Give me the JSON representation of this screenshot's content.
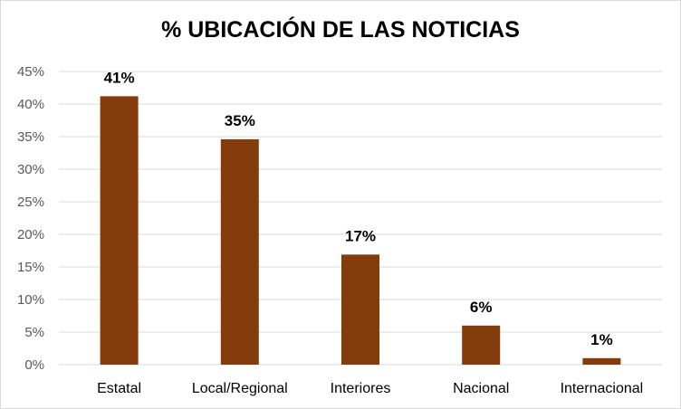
{
  "chart_data": {
    "type": "bar",
    "title": "% UBICACIÓN DE LAS NOTICIAS",
    "xlabel": "",
    "ylabel": "",
    "categories": [
      "Estatal",
      "Local/Regional",
      "Interiores",
      "Nacional",
      "Internacional"
    ],
    "values": [
      41.2,
      34.6,
      16.9,
      6.0,
      1.0
    ],
    "data_labels": [
      "41%",
      "35%",
      "17%",
      "6%",
      "1%"
    ],
    "ylim": [
      0,
      45
    ],
    "yticks": [
      0,
      5,
      10,
      15,
      20,
      25,
      30,
      35,
      40,
      45
    ],
    "ytick_labels": [
      "0%",
      "5%",
      "10%",
      "15%",
      "20%",
      "25%",
      "30%",
      "35%",
      "40%",
      "45%"
    ],
    "grid": true,
    "legend": "none",
    "colors": {
      "bar": "#843c0c",
      "grid": "#d9d9d9",
      "tick_text": "#595959"
    }
  }
}
